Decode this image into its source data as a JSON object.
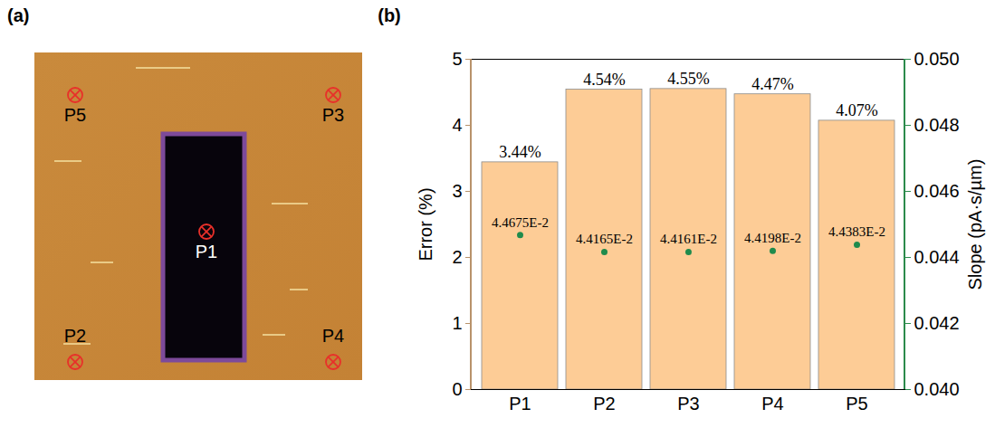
{
  "chart_data": {
    "type": "bar",
    "panel_label": "(b)",
    "categories": [
      "P1",
      "P2",
      "P3",
      "P4",
      "P5"
    ],
    "y_label": "Error (%)",
    "y2_label": "Slope (pA·s/µm)",
    "series": [
      {
        "type": "bar",
        "color": "#fdcc96",
        "values": [
          3.44,
          4.54,
          4.55,
          4.47,
          4.07
        ],
        "value_labels": [
          "3.44%",
          "4.54%",
          "4.55%",
          "4.47%",
          "4.07%"
        ]
      },
      {
        "type": "scatter",
        "axis": "y2",
        "color": "#1f8b4c",
        "marker": "circle",
        "values": [
          0.044675,
          0.044165,
          0.044161,
          0.044198,
          0.044383
        ],
        "value_labels": [
          "4.4675E-2",
          "4.4165E-2",
          "4.4161E-2",
          "4.4198E-2",
          "4.4383E-2"
        ]
      }
    ],
    "ylim": [
      0,
      5
    ],
    "yticks": [
      0,
      1,
      2,
      3,
      4,
      5
    ],
    "y2lim": [
      0.04,
      0.05
    ],
    "y2ticks": [
      {
        "value": 0.04,
        "label": "0.040"
      },
      {
        "value": 0.042,
        "label": "0.042"
      },
      {
        "value": 0.044,
        "label": "0.044"
      },
      {
        "value": 0.046,
        "label": "0.046"
      },
      {
        "value": 0.048,
        "label": "0.048"
      },
      {
        "value": 0.05,
        "label": "0.050"
      }
    ],
    "data_labels": true,
    "grid": false
  },
  "image_panel": {
    "panel_label": "(a)",
    "markers": [
      "P1",
      "P2",
      "P3",
      "P4",
      "P5"
    ]
  }
}
